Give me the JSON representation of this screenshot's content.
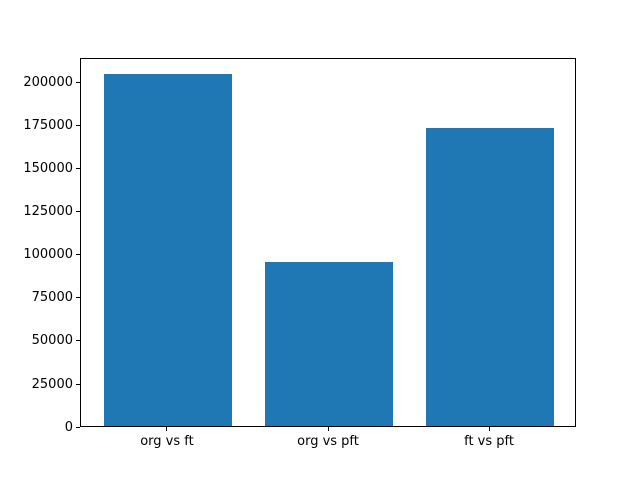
{
  "chart_data": {
    "type": "bar",
    "title": "",
    "xlabel": "",
    "ylabel": "",
    "categories": [
      "org vs ft",
      "org vs pft",
      "ft vs pft"
    ],
    "values": [
      204000,
      95000,
      173000
    ],
    "yticks": [
      0,
      25000,
      50000,
      75000,
      100000,
      125000,
      150000,
      175000,
      200000
    ],
    "ytick_labels": [
      "0",
      "25000",
      "50000",
      "75000",
      "100000",
      "125000",
      "150000",
      "175000",
      "200000"
    ],
    "ylim": [
      0,
      214200
    ],
    "xlim": [
      -0.54,
      2.54
    ],
    "bar_width": 0.8,
    "bar_color": "#1f77b4",
    "spine_color": "#000000",
    "background": "#ffffff",
    "grid": false,
    "legend": null
  }
}
